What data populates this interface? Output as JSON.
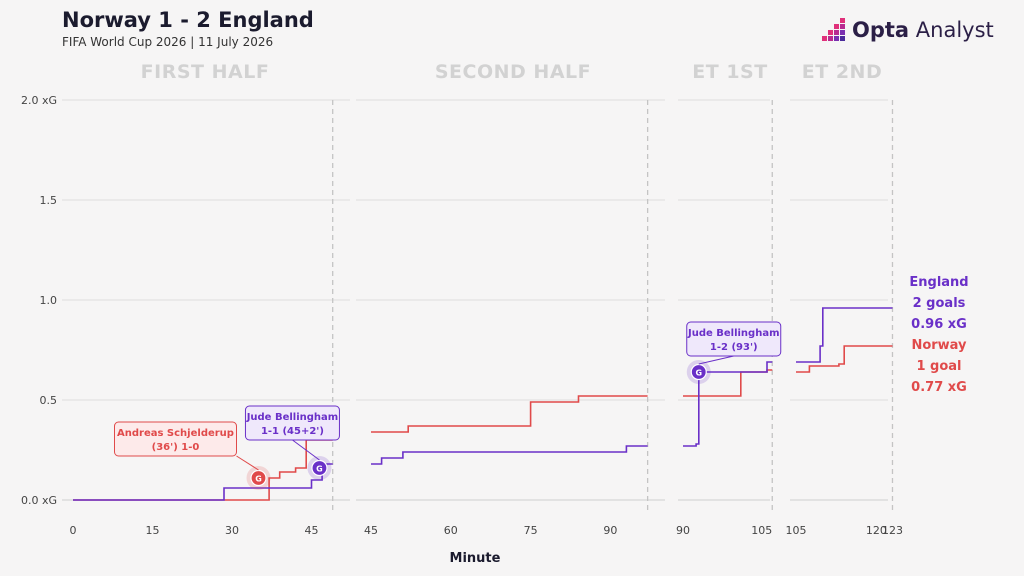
{
  "header": {
    "title": "Norway 1 - 2 England",
    "subtitle": "FIFA World Cup 2026 | 11 July 2026",
    "brand_bold": "Opta",
    "brand_light": "Analyst"
  },
  "colors": {
    "england": "#6a30c8",
    "norway": "#e04a4a",
    "grid": "#dddddd",
    "text": "#1b1b2e",
    "period_label": "#d2d2d2"
  },
  "totals": {
    "england": {
      "team": "England",
      "goals": "2 goals",
      "xg": "0.96 xG"
    },
    "norway": {
      "team": "Norway",
      "goals": "1 goal",
      "xg": "0.77 xG"
    }
  },
  "chart_data": {
    "type": "line",
    "title": "Norway 1 - 2 England",
    "subtitle": "FIFA World Cup 2026 | 11 July 2026",
    "xlabel": "Minute",
    "ylabel": "",
    "ylim": [
      0,
      2.0
    ],
    "y_ticks": [
      "0.0 xG",
      "0.5",
      "1.0",
      "1.5",
      "2.0 xG"
    ],
    "grid": true,
    "legend": "right",
    "panels": [
      {
        "label": "FIRST HALF",
        "xlim": [
          0,
          49
        ],
        "x_ticks": [
          0,
          15,
          30,
          45
        ],
        "period_end": 49,
        "series": [
          {
            "name": "Norway",
            "x": [
              0,
              35,
              37,
              39,
              42,
              44,
              45,
              49
            ],
            "y": [
              0,
              0,
              0.11,
              0.14,
              0.16,
              0.3,
              0.3,
              0.3
            ]
          },
          {
            "name": "England",
            "x": [
              0,
              28.5,
              35,
              44,
              45,
              47,
              47.8,
              49
            ],
            "y": [
              0,
              0.06,
              0.06,
              0.06,
              0.1,
              0.16,
              0.18,
              0.18
            ]
          }
        ],
        "goals": [
          {
            "team": "Norway",
            "minute": 35,
            "xg": 0.11,
            "label": "Andreas Schjelderup",
            "detail": "(36') 1-0"
          },
          {
            "team": "England",
            "minute": 46.5,
            "xg": 0.16,
            "label": "Jude Bellingham",
            "detail": "1-1 (45+2')"
          }
        ]
      },
      {
        "label": "SECOND HALF",
        "xlim": [
          45,
          97
        ],
        "x_ticks": [
          45,
          60,
          75,
          90
        ],
        "period_end": 97,
        "series": [
          {
            "name": "Norway",
            "x": [
              45,
              52,
              75,
              84,
              97
            ],
            "y": [
              0.34,
              0.37,
              0.49,
              0.52,
              0.52
            ]
          },
          {
            "name": "England",
            "x": [
              45,
              47,
              51,
              93,
              97
            ],
            "y": [
              0.18,
              0.21,
              0.24,
              0.27,
              0.27
            ]
          }
        ],
        "goals": []
      },
      {
        "label": "ET 1ST",
        "xlim": [
          90,
          107
        ],
        "x_ticks": [
          90,
          105
        ],
        "period_end": 107,
        "series": [
          {
            "name": "Norway",
            "x": [
              90,
              101,
              106,
              107
            ],
            "y": [
              0.52,
              0.64,
              0.65,
              0.65
            ]
          },
          {
            "name": "England",
            "x": [
              90,
              92.5,
              93,
              106,
              107
            ],
            "y": [
              0.27,
              0.28,
              0.64,
              0.69,
              0.69
            ]
          }
        ],
        "goals": [
          {
            "team": "England",
            "minute": 93,
            "xg": 0.64,
            "label": "Jude Bellingham",
            "detail": "1-2 (93')"
          }
        ]
      },
      {
        "label": "ET 2ND",
        "xlim": [
          105,
          123
        ],
        "x_ticks": [
          105,
          120,
          123
        ],
        "period_end": 123,
        "series": [
          {
            "name": "Norway",
            "x": [
              105,
              107.5,
              113,
              114,
              123
            ],
            "y": [
              0.64,
              0.67,
              0.68,
              0.77,
              0.77
            ]
          },
          {
            "name": "England",
            "x": [
              105,
              109.5,
              110,
              123
            ],
            "y": [
              0.69,
              0.77,
              0.96,
              0.96
            ]
          }
        ],
        "goals": []
      }
    ]
  }
}
